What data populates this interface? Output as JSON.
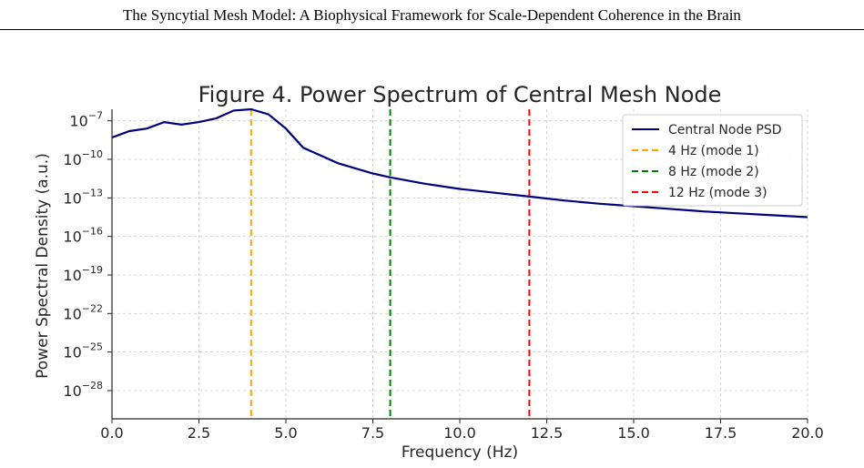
{
  "page": {
    "running_header": "The Syncytial Mesh Model: A Biophysical Framework for Scale-Dependent Coherence in the Brain"
  },
  "chart_data": {
    "type": "line",
    "title": "Figure 4. Power Spectrum of Central Mesh Node",
    "xlabel": "Frequency (Hz)",
    "ylabel": "Power Spectral Density (a.u.)",
    "xlim": [
      0,
      20
    ],
    "yscale": "log",
    "ylim_exponent": [
      -30.2,
      -6.1
    ],
    "x_ticks": [
      0,
      2.5,
      5,
      7.5,
      10,
      12.5,
      15,
      17.5,
      20
    ],
    "x_tick_labels": [
      "0.0",
      "2.5",
      "5.0",
      "7.5",
      "10.0",
      "12.5",
      "15.0",
      "17.5",
      "20.0"
    ],
    "y_tick_exponents": [
      -7,
      -10,
      -13,
      -16,
      -19,
      -22,
      -25,
      -28
    ],
    "y_tick_labels": [
      "10",
      "10",
      "10",
      "10",
      "10",
      "10",
      "10",
      "10"
    ],
    "y_tick_superscripts": [
      "−7",
      "−10",
      "−13",
      "−16",
      "−19",
      "−22",
      "−25",
      "−28"
    ],
    "grid": true,
    "legend_position": "top-right",
    "series": [
      {
        "name": "Central Node PSD",
        "color": "#00007f",
        "style": "solid",
        "x": [
          0,
          0.5,
          1.0,
          1.5,
          2.0,
          2.5,
          3.0,
          3.5,
          4.0,
          4.5,
          5.0,
          5.5,
          6.0,
          6.5,
          7.0,
          7.5,
          8.0,
          9.0,
          10.0,
          11.0,
          12.0,
          13.0,
          14.0,
          15.0,
          16.0,
          17.0,
          18.0,
          19.0,
          20.0
        ],
        "y_log10": [
          -8.3,
          -7.8,
          -7.6,
          -7.1,
          -7.3,
          -7.1,
          -6.8,
          -6.2,
          -6.1,
          -6.5,
          -7.6,
          -9.1,
          -9.7,
          -10.3,
          -10.7,
          -11.1,
          -11.4,
          -11.9,
          -12.3,
          -12.6,
          -12.9,
          -13.2,
          -13.45,
          -13.65,
          -13.85,
          -14.05,
          -14.2,
          -14.35,
          -14.5
        ]
      }
    ],
    "vlines": [
      {
        "x": 4,
        "name": "4 Hz (mode 1)",
        "color": "#ffa500",
        "style": "dashed"
      },
      {
        "x": 8,
        "name": "8 Hz (mode 2)",
        "color": "#008000",
        "style": "dashed"
      },
      {
        "x": 12,
        "name": "12 Hz (mode 3)",
        "color": "#ff0000",
        "style": "dashed"
      }
    ]
  }
}
